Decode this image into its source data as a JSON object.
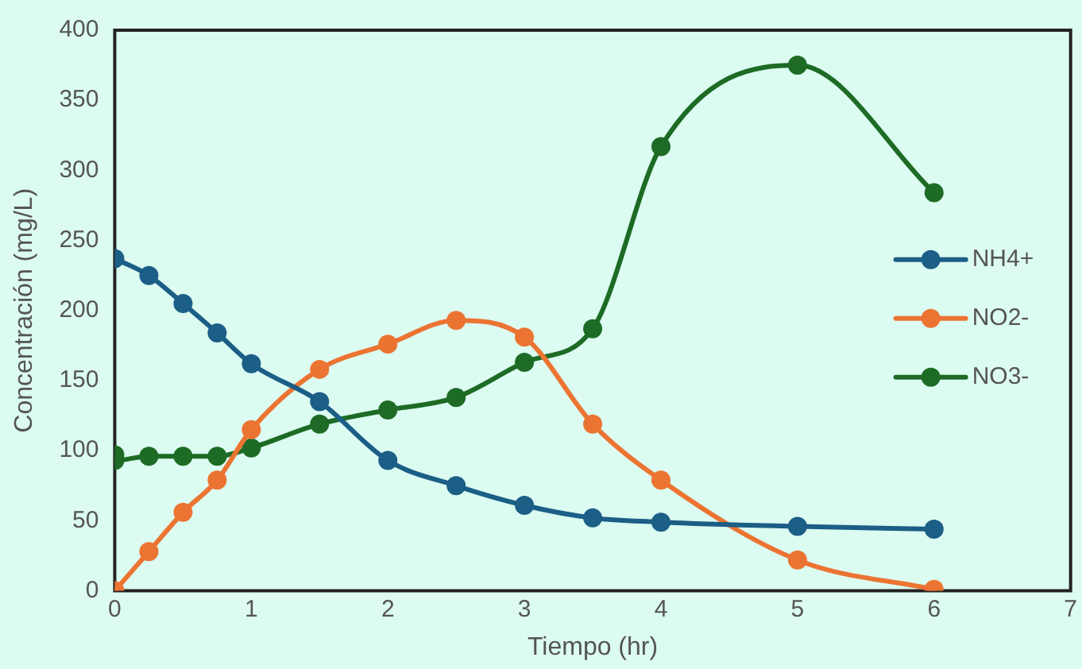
{
  "chart_data": {
    "type": "line",
    "xlabel": "Tiempo (hr)",
    "ylabel": "Concentración (mg/L)",
    "xlim": [
      0,
      7
    ],
    "xticks": [
      0,
      1,
      2,
      3,
      4,
      5,
      6,
      7
    ],
    "ylim": [
      0,
      400
    ],
    "yticks": [
      0,
      50,
      100,
      150,
      200,
      250,
      300,
      350,
      400
    ],
    "grid": false,
    "legend": "right",
    "marker": "circle",
    "line_style": "solid",
    "series": [
      {
        "name": "NH4+",
        "color": "#1b5e86",
        "x": [
          0,
          0.25,
          0.5,
          0.75,
          1,
          1.5,
          2,
          2.5,
          3,
          3.5,
          4,
          5,
          6
        ],
        "values": [
          237,
          225,
          205,
          184,
          162,
          135,
          93,
          75,
          61,
          52,
          49,
          46,
          44
        ]
      },
      {
        "name": "NO2-",
        "color": "#ec7432",
        "x": [
          0,
          0.25,
          0.5,
          0.75,
          1,
          1.5,
          2,
          2.5,
          3,
          3.5,
          4,
          5,
          6
        ],
        "values": [
          0,
          28,
          56,
          79,
          115,
          158,
          176,
          193,
          181,
          119,
          79,
          22,
          1
        ]
      },
      {
        "name": "NO3-",
        "color": "#1d6b24",
        "x": [
          0,
          0,
          0.25,
          0.5,
          0.75,
          1,
          1.5,
          2,
          2.5,
          3,
          3.5,
          4,
          5,
          6
        ],
        "values": [
          97,
          93,
          96,
          96,
          96,
          102,
          119,
          129,
          138,
          163,
          187,
          317,
          375,
          284
        ]
      }
    ]
  }
}
